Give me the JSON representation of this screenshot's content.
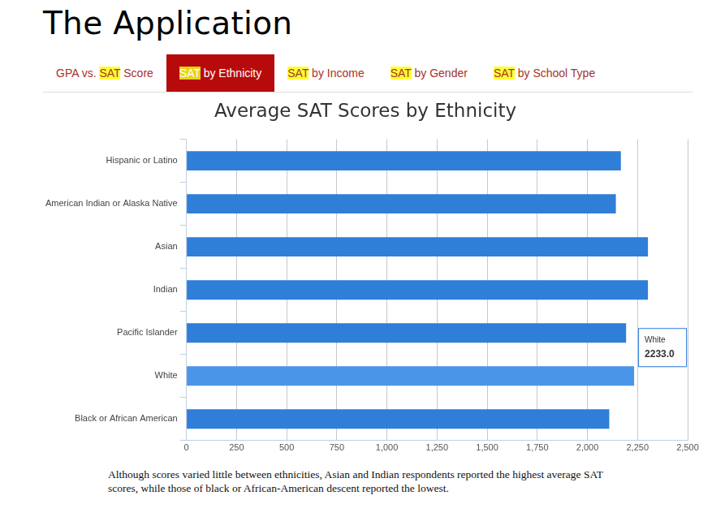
{
  "heading": "The Application",
  "tabs": [
    "GPA vs. SAT Score",
    "SAT by Ethnicity",
    "SAT by Income",
    "SAT by Gender",
    "SAT by School Type"
  ],
  "active_tab": "SAT by Ethnicity",
  "highlight": "SAT",
  "caption": "Although scores varied little between ethnicities, Asian and Indian respondents reported the highest average SAT scores, while those of black or African-American descent reported the lowest.",
  "chart_data": {
    "type": "bar",
    "orientation": "horizontal",
    "title": "Average SAT Scores by Ethnicity",
    "categories": [
      "Hispanic or Latino",
      "American Indian or Alaska Native",
      "Asian",
      "Indian",
      "Pacific Islander",
      "White",
      "Black or African American"
    ],
    "values": [
      2167,
      2142,
      2302,
      2302,
      2193,
      2233,
      2109
    ],
    "colors": [
      "#2f7ed8",
      "#2f7ed8",
      "#2f7ed8",
      "#2f7ed8",
      "#2f7ed8",
      "#4a95e8",
      "#2f7ed8"
    ],
    "xlim": [
      0,
      2500
    ],
    "xticks": [
      0,
      250,
      500,
      750,
      {
        "value": 1000,
        "label": "1,000"
      },
      {
        "value": 1250,
        "label": "1,250"
      },
      {
        "value": 1500,
        "label": "1,500"
      },
      {
        "value": 1750,
        "label": "1,750"
      },
      {
        "value": 2000,
        "label": "2,000"
      },
      {
        "value": 2250,
        "label": "2,250"
      },
      {
        "value": 2500,
        "label": "2,500"
      }
    ],
    "grid": true,
    "annotations": [
      {
        "category": "White",
        "text": "2233.0"
      }
    ]
  }
}
